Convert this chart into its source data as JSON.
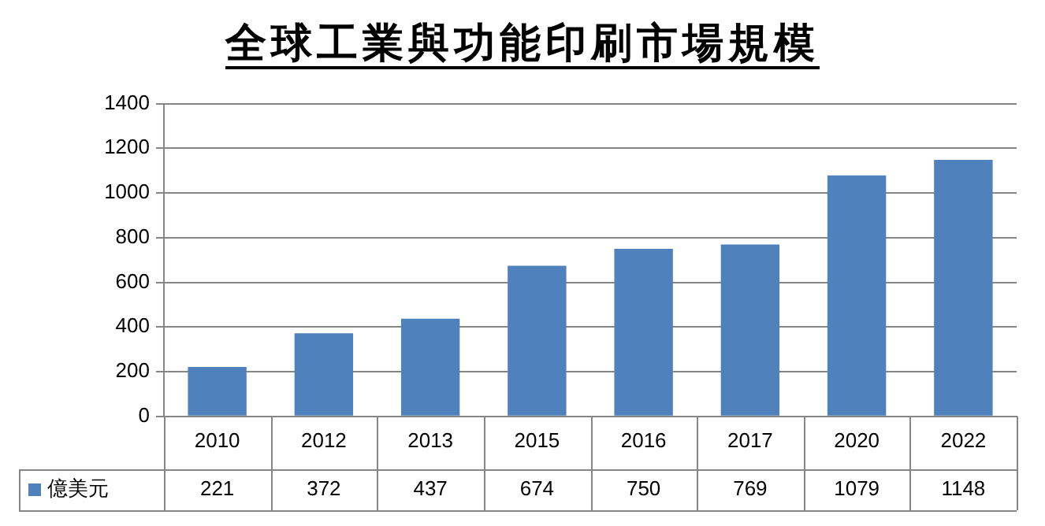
{
  "chart_data": {
    "type": "bar",
    "title": "全球工業與功能印刷市場規模",
    "categories": [
      "2010",
      "2012",
      "2013",
      "2015",
      "2016",
      "2017",
      "2020",
      "2022"
    ],
    "series": [
      {
        "name": "億美元",
        "color": "#4f81bd",
        "values": [
          221,
          372,
          437,
          674,
          750,
          769,
          1079,
          1148
        ]
      }
    ],
    "ylim": [
      0,
      1400
    ],
    "yticks": [
      0,
      200,
      400,
      600,
      800,
      1000,
      1200,
      1400
    ],
    "grid": "y",
    "legend": "bottom left",
    "data_labels": true
  }
}
